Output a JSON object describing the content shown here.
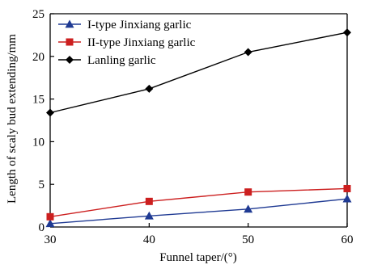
{
  "chart_data": {
    "type": "line",
    "xlabel": "Funnel taper/(°)",
    "ylabel": "Length of scaly bud extending/mm",
    "x": [
      30,
      40,
      50,
      60
    ],
    "xlim": [
      30,
      60
    ],
    "ylim": [
      0,
      25
    ],
    "x_ticks": [
      "30",
      "40",
      "50",
      "60"
    ],
    "y_ticks": [
      "0",
      "5",
      "10",
      "15",
      "20",
      "25"
    ],
    "grid": false,
    "legend_position": "top-left",
    "series": [
      {
        "name": "I-type Jinxiang garlic",
        "values": [
          0.4,
          1.3,
          2.1,
          3.3
        ],
        "color": "#1f3a93",
        "marker": "triangle"
      },
      {
        "name": "II-type Jinxiang garlic",
        "values": [
          1.2,
          3.0,
          4.1,
          4.5
        ],
        "color": "#cc1f1f",
        "marker": "square"
      },
      {
        "name": "Lanling garlic",
        "values": [
          13.4,
          16.2,
          20.5,
          22.8
        ],
        "color": "#000000",
        "marker": "diamond"
      }
    ]
  }
}
